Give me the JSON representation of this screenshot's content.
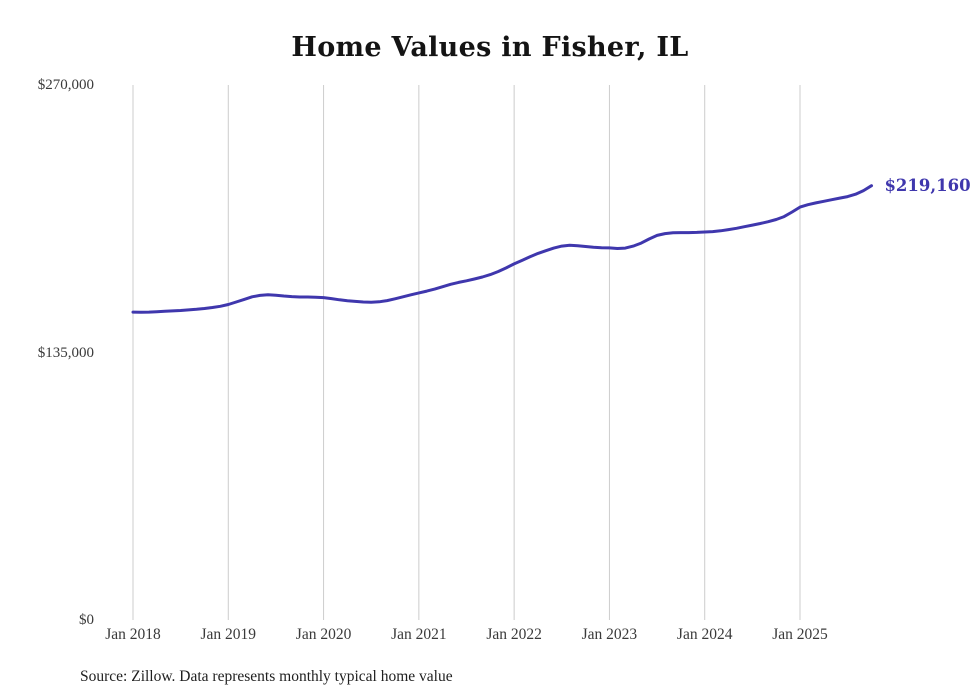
{
  "title": "Home Values in Fisher, IL",
  "source_note": "Source: Zillow. Data represents monthly typical home value",
  "chart_data": {
    "type": "line",
    "title": "Home Values in Fisher, IL",
    "series_name": "Monthly typical home value",
    "end_label": "$219,160",
    "latest_value": 219160,
    "ylim": [
      0,
      270000
    ],
    "line_color": "#3f37ad",
    "grid_color": "#cccccc",
    "legend": "none",
    "grid": "vertical-only",
    "y_ticks": [
      {
        "value": 0,
        "label": "$0"
      },
      {
        "value": 135000,
        "label": "$135,000"
      },
      {
        "value": 270000,
        "label": "$270,000"
      }
    ],
    "x_tick_labels": [
      "Jan 2018",
      "Jan 2019",
      "Jan 2020",
      "Jan 2021",
      "Jan 2022",
      "Jan 2023",
      "Jan 2024",
      "Jan 2025"
    ],
    "months": [
      "2018-01",
      "2018-02",
      "2018-03",
      "2018-04",
      "2018-05",
      "2018-06",
      "2018-07",
      "2018-08",
      "2018-09",
      "2018-10",
      "2018-11",
      "2018-12",
      "2019-01",
      "2019-02",
      "2019-03",
      "2019-04",
      "2019-05",
      "2019-06",
      "2019-07",
      "2019-08",
      "2019-09",
      "2019-10",
      "2019-11",
      "2019-12",
      "2020-01",
      "2020-02",
      "2020-03",
      "2020-04",
      "2020-05",
      "2020-06",
      "2020-07",
      "2020-08",
      "2020-09",
      "2020-10",
      "2020-11",
      "2020-12",
      "2021-01",
      "2021-02",
      "2021-03",
      "2021-04",
      "2021-05",
      "2021-06",
      "2021-07",
      "2021-08",
      "2021-09",
      "2021-10",
      "2021-11",
      "2021-12",
      "2022-01",
      "2022-02",
      "2022-03",
      "2022-04",
      "2022-05",
      "2022-06",
      "2022-07",
      "2022-08",
      "2022-09",
      "2022-10",
      "2022-11",
      "2022-12",
      "2023-01",
      "2023-02",
      "2023-03",
      "2023-04",
      "2023-05",
      "2023-06",
      "2023-07",
      "2023-08",
      "2023-09",
      "2023-10",
      "2023-11",
      "2023-12",
      "2024-01",
      "2024-02",
      "2024-03",
      "2024-04",
      "2024-05",
      "2024-06",
      "2024-07",
      "2024-08",
      "2024-09",
      "2024-10",
      "2024-11",
      "2024-12",
      "2025-01",
      "2025-02",
      "2025-03",
      "2025-04",
      "2025-05",
      "2025-06",
      "2025-07",
      "2025-08",
      "2025-09",
      "2025-10"
    ],
    "values": [
      155400,
      155300,
      155400,
      155600,
      155800,
      156000,
      156200,
      156500,
      156800,
      157200,
      157700,
      158300,
      159200,
      160500,
      161800,
      163100,
      163800,
      164100,
      163900,
      163500,
      163200,
      163000,
      163000,
      162900,
      162700,
      162200,
      161600,
      161100,
      160800,
      160500,
      160400,
      160600,
      161200,
      162100,
      163100,
      164100,
      165100,
      166000,
      167000,
      168200,
      169400,
      170400,
      171200,
      172100,
      173100,
      174300,
      175900,
      177700,
      179700,
      181500,
      183300,
      185000,
      186400,
      187700,
      188700,
      189100,
      188900,
      188500,
      188100,
      187900,
      187800,
      187500,
      187700,
      188700,
      190200,
      192300,
      194100,
      195000,
      195400,
      195500,
      195500,
      195600,
      195800,
      196000,
      196400,
      197000,
      197700,
      198500,
      199300,
      200100,
      201000,
      202100,
      203600,
      205900,
      208400,
      209600,
      210500,
      211300,
      212100,
      212900,
      213700,
      214900,
      216700,
      219160
    ]
  }
}
